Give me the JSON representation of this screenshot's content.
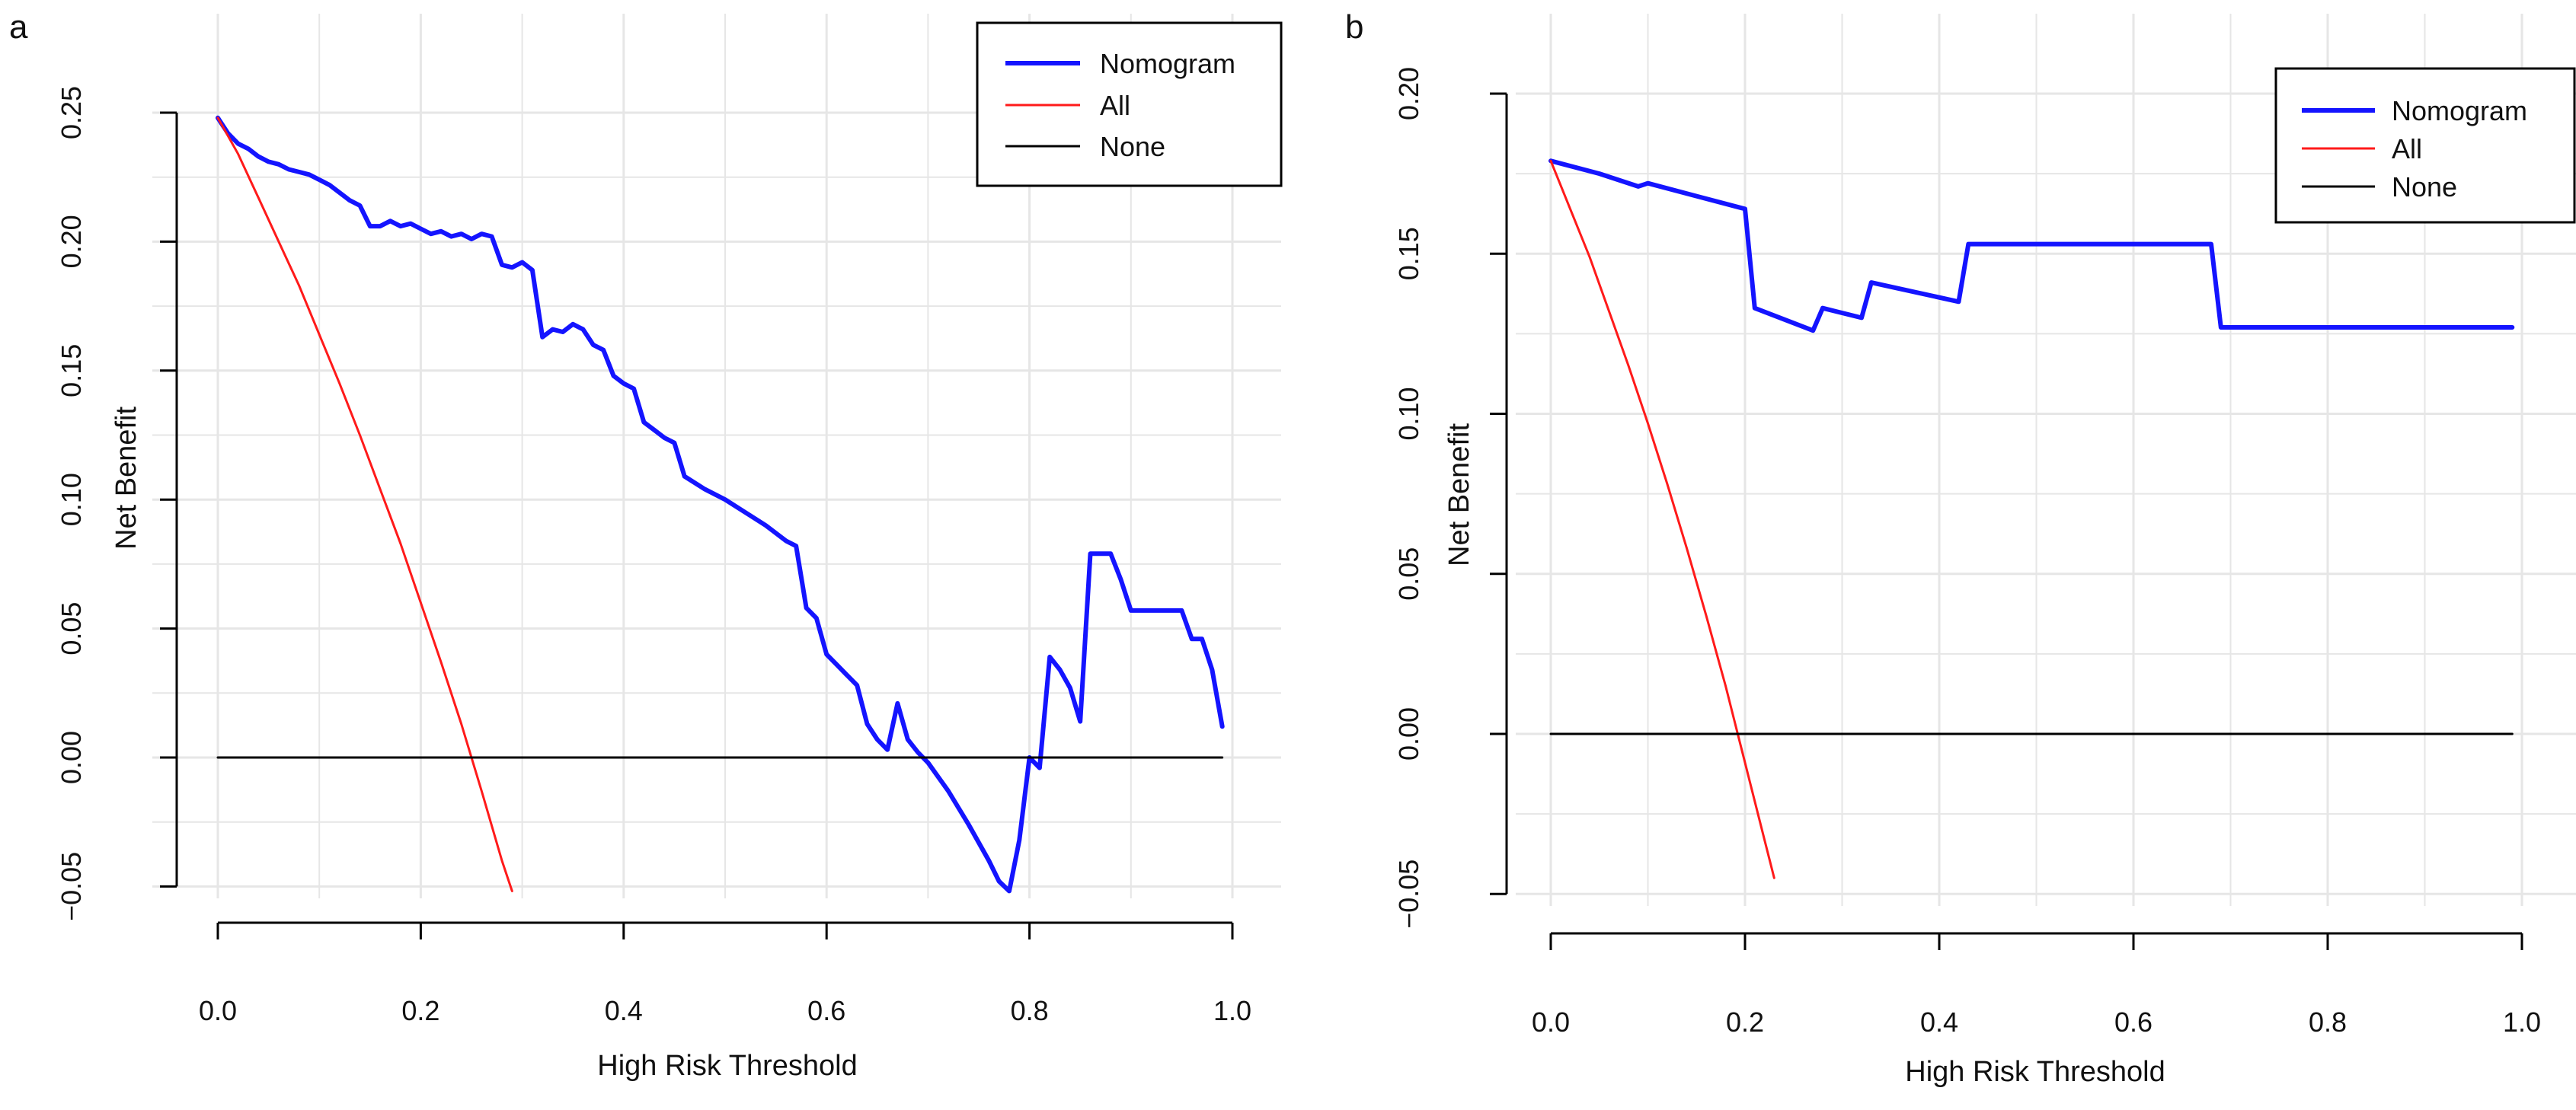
{
  "colors": {
    "nomogram": "#1414ff",
    "all": "#ff1a1a",
    "none": "#000000",
    "grid": "#e6e6e6"
  },
  "chart_data": [
    {
      "panel": "a",
      "type": "line",
      "xlabel": "High Risk Threshold",
      "ylabel": "Net Benefit",
      "xlim": [
        -0.03,
        1.02
      ],
      "ylim": [
        -0.05,
        0.25
      ],
      "xticks": [
        0.0,
        0.2,
        0.4,
        0.6,
        0.8,
        1.0
      ],
      "xtick_labels": [
        "0.0",
        "0.2",
        "0.4",
        "0.6",
        "0.8",
        "1.0"
      ],
      "yticks": [
        -0.05,
        0.0,
        0.05,
        0.1,
        0.15,
        0.2,
        0.25
      ],
      "ytick_labels": [
        "−0.05",
        "0.00",
        "0.05",
        "0.10",
        "0.15",
        "0.20",
        "0.25"
      ],
      "grid": true,
      "legend_position": "top-right",
      "legend": [
        "Nomogram",
        "All",
        "None"
      ],
      "series": [
        {
          "name": "Nomogram",
          "x": [
            0.0,
            0.01,
            0.02,
            0.03,
            0.04,
            0.05,
            0.06,
            0.07,
            0.08,
            0.09,
            0.1,
            0.11,
            0.12,
            0.13,
            0.14,
            0.15,
            0.16,
            0.17,
            0.18,
            0.19,
            0.2,
            0.21,
            0.22,
            0.23,
            0.24,
            0.25,
            0.26,
            0.27,
            0.28,
            0.29,
            0.3,
            0.31,
            0.32,
            0.33,
            0.34,
            0.35,
            0.36,
            0.37,
            0.38,
            0.39,
            0.4,
            0.41,
            0.42,
            0.43,
            0.44,
            0.45,
            0.46,
            0.48,
            0.5,
            0.52,
            0.54,
            0.56,
            0.57,
            0.58,
            0.59,
            0.6,
            0.61,
            0.62,
            0.63,
            0.64,
            0.65,
            0.66,
            0.67,
            0.68,
            0.69,
            0.7,
            0.72,
            0.74,
            0.76,
            0.77,
            0.78,
            0.79,
            0.8,
            0.81,
            0.82,
            0.83,
            0.84,
            0.85,
            0.86,
            0.87,
            0.88,
            0.89,
            0.9,
            0.91,
            0.92,
            0.93,
            0.94,
            0.95,
            0.96,
            0.97,
            0.98,
            0.99
          ],
          "y": [
            0.248,
            0.242,
            0.238,
            0.236,
            0.233,
            0.231,
            0.23,
            0.228,
            0.227,
            0.226,
            0.224,
            0.222,
            0.219,
            0.216,
            0.214,
            0.206,
            0.206,
            0.208,
            0.206,
            0.207,
            0.205,
            0.203,
            0.204,
            0.202,
            0.203,
            0.201,
            0.203,
            0.202,
            0.191,
            0.19,
            0.192,
            0.189,
            0.163,
            0.166,
            0.165,
            0.168,
            0.166,
            0.16,
            0.158,
            0.148,
            0.145,
            0.143,
            0.13,
            0.127,
            0.124,
            0.122,
            0.109,
            0.104,
            0.1,
            0.095,
            0.09,
            0.084,
            0.082,
            0.058,
            0.054,
            0.04,
            0.036,
            0.032,
            0.028,
            0.013,
            0.007,
            0.003,
            0.021,
            0.007,
            0.002,
            -0.002,
            -0.013,
            -0.026,
            -0.04,
            -0.048,
            -0.063,
            -0.032,
            0.0,
            -0.004,
            0.039,
            0.034,
            0.027,
            0.014,
            0.079,
            0.079,
            0.079,
            0.069,
            0.057,
            0.057,
            0.057,
            0.057,
            0.057,
            0.057,
            0.046,
            0.046,
            0.034,
            0.012
          ]
        },
        {
          "name": "All",
          "x": [
            0.0,
            0.02,
            0.04,
            0.06,
            0.08,
            0.1,
            0.12,
            0.14,
            0.16,
            0.18,
            0.2,
            0.22,
            0.24,
            0.26,
            0.28,
            0.29
          ],
          "y": [
            0.248,
            0.234,
            0.217,
            0.2,
            0.183,
            0.164,
            0.145,
            0.125,
            0.104,
            0.083,
            0.06,
            0.037,
            0.013,
            -0.013,
            -0.04,
            -0.054
          ]
        },
        {
          "name": "None",
          "x": [
            0.0,
            0.99
          ],
          "y": [
            0.0,
            0.0
          ]
        }
      ]
    },
    {
      "panel": "b",
      "type": "line",
      "xlabel": "High Risk Threshold",
      "ylabel": "Net Benefit",
      "xlim": [
        -0.01,
        1.02
      ],
      "ylim": [
        -0.05,
        0.2
      ],
      "xticks": [
        0.0,
        0.2,
        0.4,
        0.6,
        0.8,
        1.0
      ],
      "xtick_labels": [
        "0.0",
        "0.2",
        "0.4",
        "0.6",
        "0.8",
        "1.0"
      ],
      "yticks": [
        -0.05,
        0.0,
        0.05,
        0.1,
        0.15,
        0.2
      ],
      "ytick_labels": [
        "−0.05",
        "0.00",
        "0.05",
        "0.10",
        "0.15",
        "0.20"
      ],
      "grid": true,
      "legend_position": "top-right",
      "legend": [
        "Nomogram",
        "All",
        "None"
      ],
      "series": [
        {
          "name": "Nomogram",
          "x": [
            0.0,
            0.05,
            0.09,
            0.1,
            0.15,
            0.2,
            0.21,
            0.27,
            0.28,
            0.32,
            0.33,
            0.42,
            0.43,
            0.68,
            0.69,
            0.99
          ],
          "y": [
            0.179,
            0.175,
            0.171,
            0.172,
            0.168,
            0.164,
            0.133,
            0.126,
            0.133,
            0.13,
            0.141,
            0.135,
            0.153,
            0.153,
            0.127,
            0.127
          ]
        },
        {
          "name": "All",
          "x": [
            0.0,
            0.02,
            0.04,
            0.06,
            0.08,
            0.1,
            0.12,
            0.14,
            0.16,
            0.18,
            0.2,
            0.22,
            0.23
          ],
          "y": [
            0.179,
            0.164,
            0.149,
            0.132,
            0.115,
            0.097,
            0.078,
            0.058,
            0.037,
            0.015,
            -0.009,
            -0.033,
            -0.045
          ]
        },
        {
          "name": "None",
          "x": [
            0.0,
            0.99
          ],
          "y": [
            0.0,
            0.0
          ]
        }
      ]
    }
  ]
}
